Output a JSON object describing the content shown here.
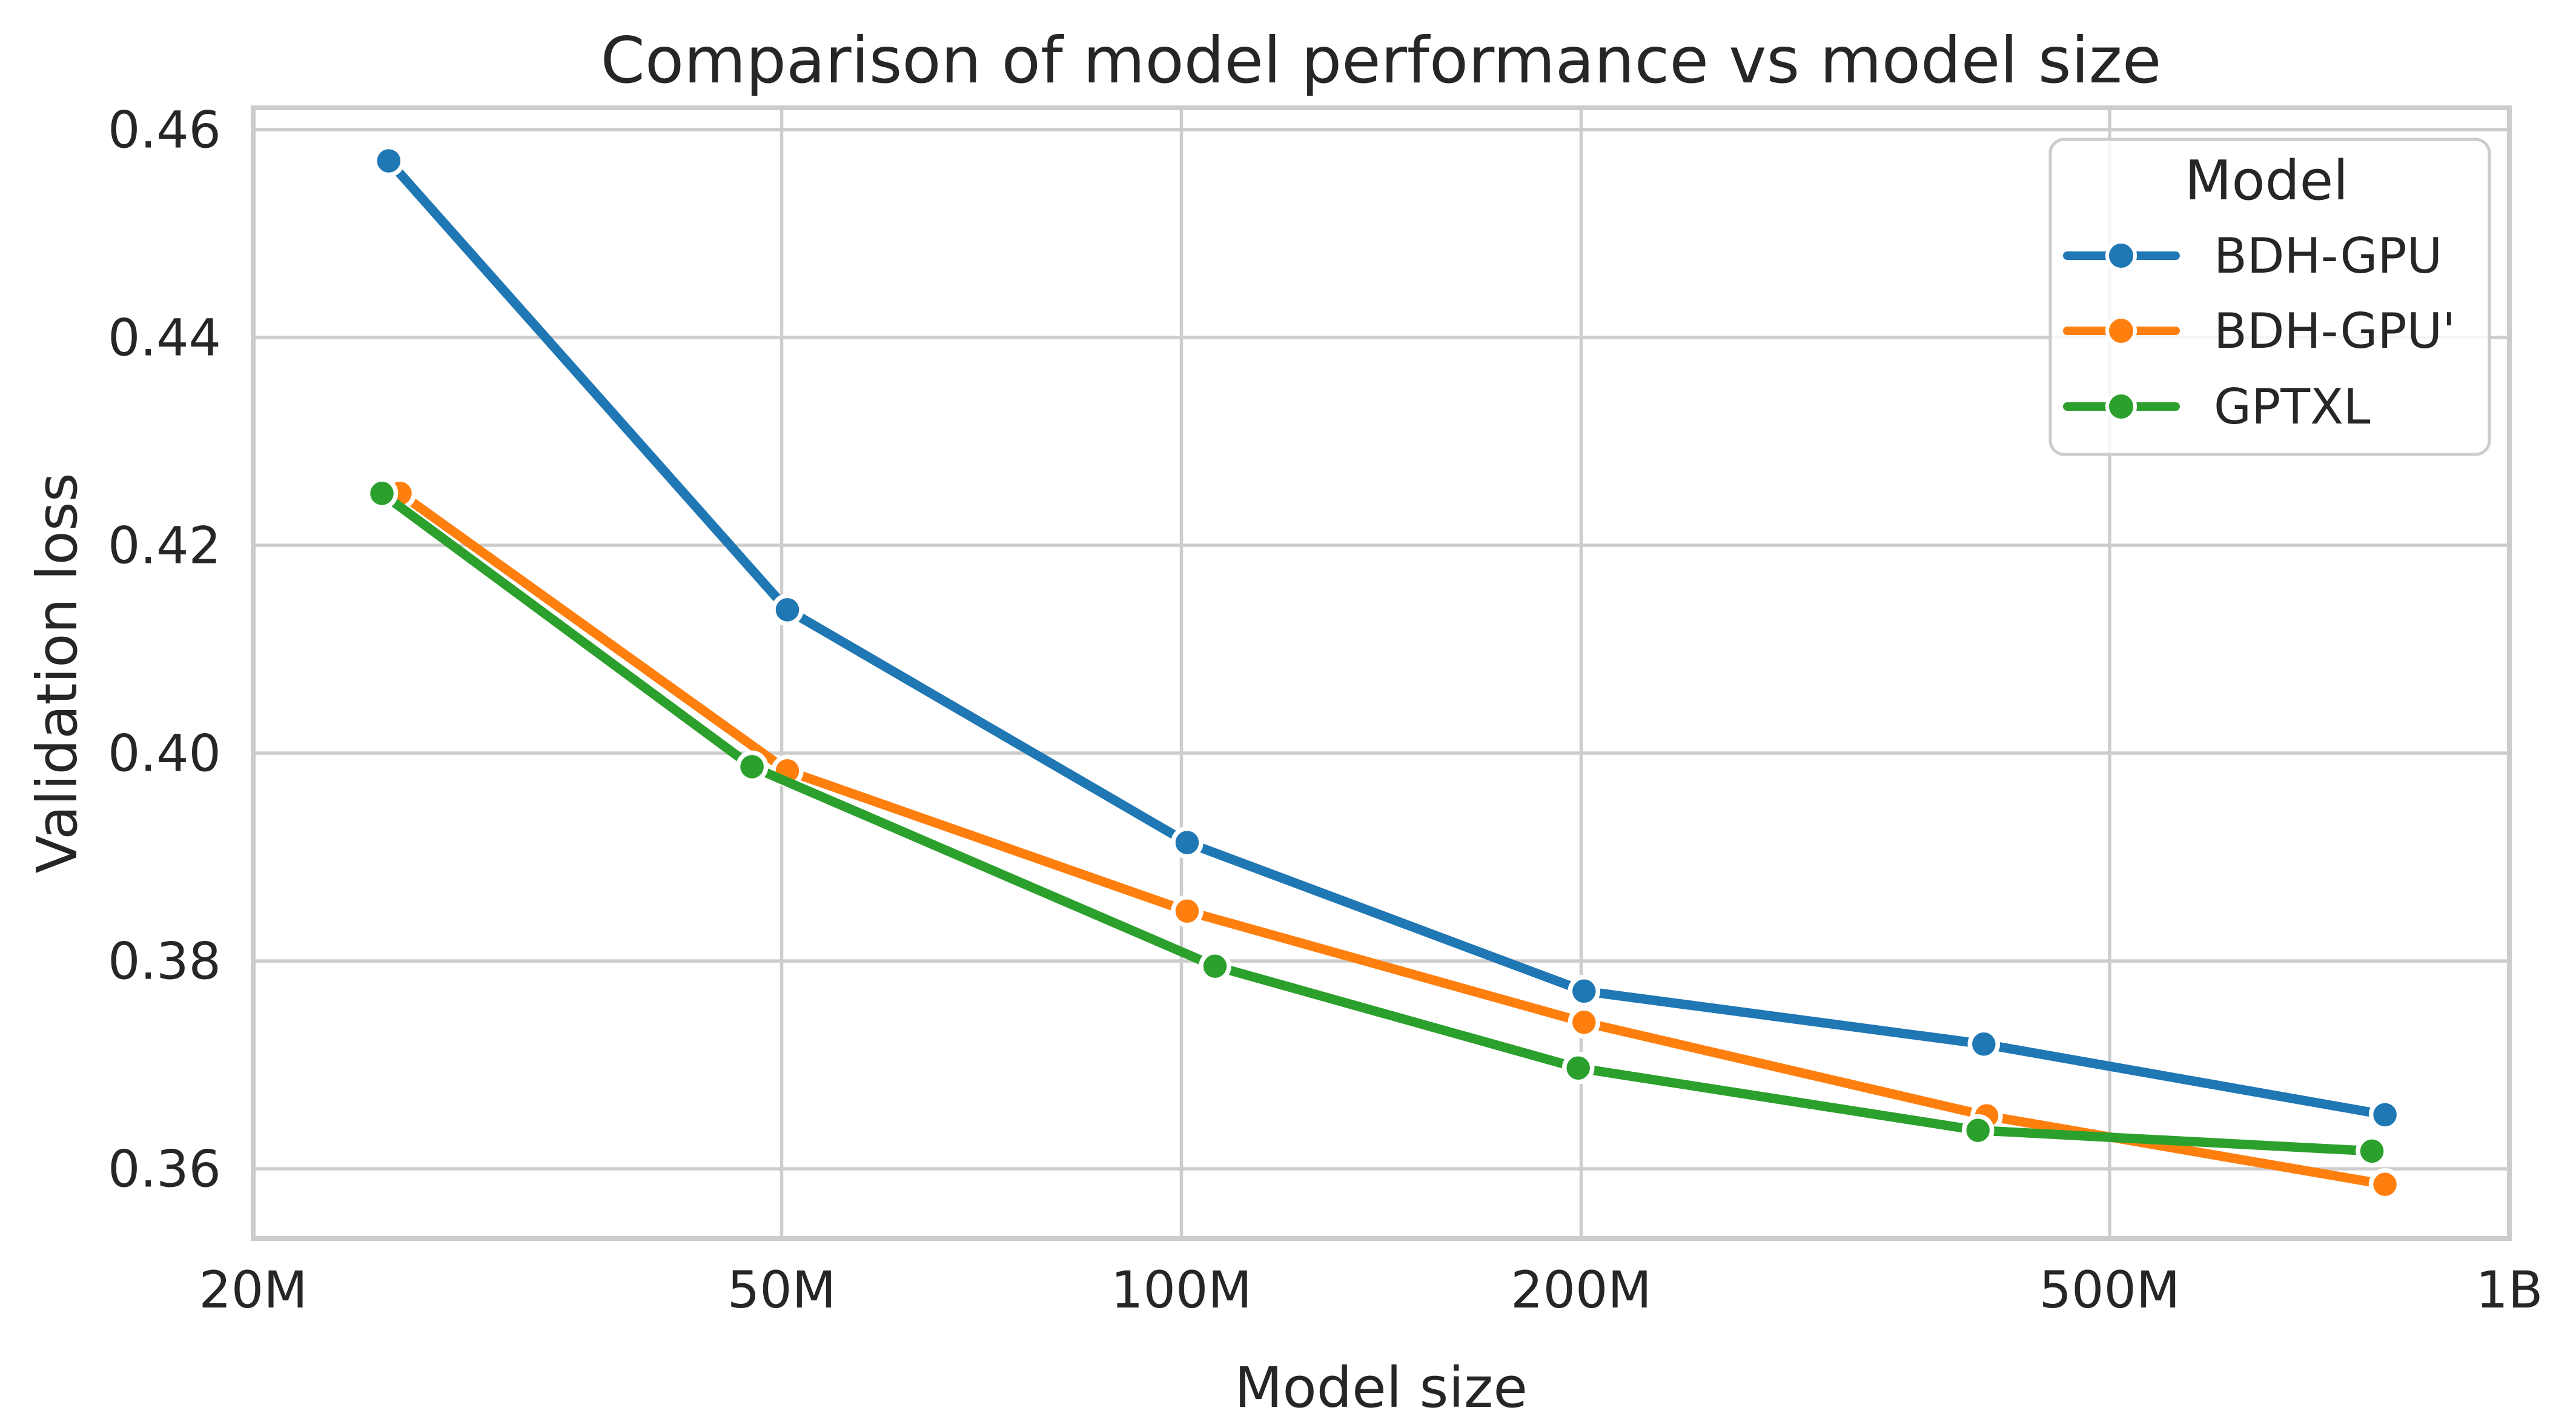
{
  "chart_data": {
    "type": "line",
    "title": "Comparison of model performance vs model size",
    "xlabel": "Model size",
    "ylabel": "Validation loss",
    "legend_title": "Model",
    "legend_position": "upper right",
    "x_scale": "log",
    "grid": true,
    "background_color": "#ffffff",
    "grid_color": "#cdcdcd",
    "spine_color": "#cccccc",
    "text_color": "#262626",
    "xlim": [
      20000000,
      1000000000
    ],
    "ylim": [
      0.3533,
      0.4621
    ],
    "x_ticks": [
      {
        "value": 20000000,
        "label": "20M"
      },
      {
        "value": 50000000,
        "label": "50M"
      },
      {
        "value": 100000000,
        "label": "100M"
      },
      {
        "value": 200000000,
        "label": "200M"
      },
      {
        "value": 500000000,
        "label": "500M"
      },
      {
        "value": 1000000000,
        "label": "1B"
      }
    ],
    "y_ticks": [
      0.46,
      0.44,
      0.42,
      0.4,
      0.38,
      0.36
    ],
    "series": [
      {
        "name": "BDH-GPU",
        "color": "#1f77b4",
        "x": [
          25300000,
          50500000,
          101000000,
          201000000,
          402000000,
          806000000
        ],
        "y": [
          0.457,
          0.4138,
          0.3914,
          0.3771,
          0.372,
          0.3652
        ]
      },
      {
        "name": "BDH-GPU'",
        "color": "#ff7f0e",
        "x": [
          25800000,
          50500000,
          101000000,
          201000000,
          404000000,
          806000000
        ],
        "y": [
          0.425,
          0.3983,
          0.3848,
          0.3741,
          0.3651,
          0.3585
        ]
      },
      {
        "name": "GPTXL",
        "color": "#2ca02c",
        "x": [
          25000000,
          47500000,
          106000000,
          199000000,
          398000000,
          788000000
        ],
        "y": [
          0.425,
          0.3987,
          0.3795,
          0.3697,
          0.3637,
          0.3617
        ]
      }
    ]
  }
}
